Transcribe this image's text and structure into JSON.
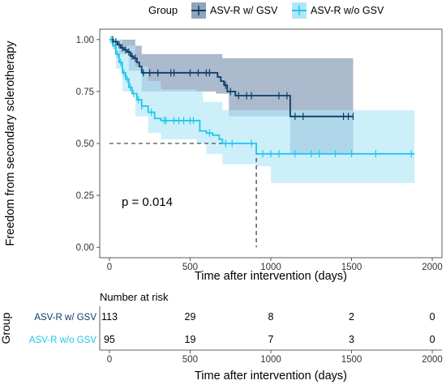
{
  "chart_data": [
    {
      "type": "line",
      "subtype": "kaplan-meier",
      "ylabel": "Freedom from secondary sclerotherapy",
      "xlabel": "Time after intervention (days)",
      "xlim": [
        -60,
        2060
      ],
      "ylim": [
        -0.05,
        1.05
      ],
      "x_ticks": [
        0,
        500,
        1000,
        1500,
        2000
      ],
      "x_tick_labels": [
        "0",
        "500",
        "1000",
        "1500",
        "2000"
      ],
      "y_ticks": [
        0,
        0.25,
        0.5,
        0.75,
        1
      ],
      "y_tick_labels": [
        "0.00",
        "0.25",
        "0.50",
        "0.75",
        "1.00"
      ],
      "grid": false,
      "legend": {
        "title": "Group",
        "placement": "top",
        "items": [
          "ASV-R w/ GSV",
          "ASV-R w/o GSV"
        ]
      },
      "annotation": "p = 0.014",
      "median_line": {
        "y": 0.5,
        "x": 910
      },
      "series": [
        {
          "name": "ASV-R w/ GSV",
          "color": "#0d3b66",
          "ci_color": "#8fa3bc",
          "points": [
            [
              0,
              1
            ],
            [
              25,
              0.99
            ],
            [
              50,
              0.975
            ],
            [
              70,
              0.96
            ],
            [
              90,
              0.95
            ],
            [
              110,
              0.94
            ],
            [
              130,
              0.92
            ],
            [
              150,
              0.91
            ],
            [
              170,
              0.89
            ],
            [
              185,
              0.87
            ],
            [
              200,
              0.84
            ],
            [
              650,
              0.84
            ],
            [
              670,
              0.82
            ],
            [
              690,
              0.8
            ],
            [
              710,
              0.78
            ],
            [
              730,
              0.75
            ],
            [
              780,
              0.73
            ],
            [
              1120,
              0.73
            ],
            [
              1120,
              0.63
            ],
            [
              1510,
              0.63
            ]
          ],
          "ci_upper": [
            [
              0,
              1
            ],
            [
              120,
              1
            ],
            [
              160,
              0.97
            ],
            [
              200,
              0.93
            ],
            [
              660,
              0.93
            ],
            [
              700,
              0.91
            ],
            [
              1510,
              0.9
            ]
          ],
          "ci_lower": [
            [
              0,
              1
            ],
            [
              60,
              0.93
            ],
            [
              120,
              0.85
            ],
            [
              200,
              0.75
            ],
            [
              660,
              0.74
            ],
            [
              740,
              0.63
            ],
            [
              1120,
              0.6
            ],
            [
              1120,
              0.45
            ],
            [
              1510,
              0.45
            ]
          ],
          "censor_x": [
            20,
            40,
            60,
            80,
            100,
            120,
            140,
            160,
            210,
            250,
            300,
            380,
            400,
            500,
            550,
            600,
            620,
            720,
            750,
            800,
            850,
            880,
            1050,
            1100,
            1150,
            1200,
            1450,
            1480,
            1510
          ]
        },
        {
          "name": "ASV-R w/o GSV",
          "color": "#20c5ee",
          "ci_color": "#b0e6f7",
          "points": [
            [
              0,
              1
            ],
            [
              20,
              0.97
            ],
            [
              40,
              0.93
            ],
            [
              60,
              0.89
            ],
            [
              80,
              0.84
            ],
            [
              100,
              0.81
            ],
            [
              120,
              0.77
            ],
            [
              140,
              0.74
            ],
            [
              170,
              0.71
            ],
            [
              200,
              0.68
            ],
            [
              240,
              0.65
            ],
            [
              280,
              0.62
            ],
            [
              320,
              0.61
            ],
            [
              550,
              0.61
            ],
            [
              560,
              0.56
            ],
            [
              600,
              0.55
            ],
            [
              640,
              0.54
            ],
            [
              680,
              0.52
            ],
            [
              700,
              0.5
            ],
            [
              910,
              0.5
            ],
            [
              910,
              0.45
            ],
            [
              1890,
              0.45
            ]
          ],
          "ci_upper": [
            [
              0,
              1
            ],
            [
              80,
              0.97
            ],
            [
              160,
              0.87
            ],
            [
              240,
              0.8
            ],
            [
              320,
              0.76
            ],
            [
              540,
              0.75
            ],
            [
              580,
              0.7
            ],
            [
              700,
              0.66
            ],
            [
              910,
              0.66
            ],
            [
              1100,
              0.66
            ],
            [
              1890,
              0.66
            ]
          ],
          "ci_lower": [
            [
              0,
              1
            ],
            [
              40,
              0.86
            ],
            [
              80,
              0.75
            ],
            [
              160,
              0.63
            ],
            [
              240,
              0.55
            ],
            [
              320,
              0.52
            ],
            [
              540,
              0.5
            ],
            [
              600,
              0.45
            ],
            [
              700,
              0.4
            ],
            [
              910,
              0.39
            ],
            [
              1000,
              0.31
            ],
            [
              1890,
              0.31
            ]
          ],
          "censor_x": [
            10,
            30,
            50,
            70,
            90,
            110,
            130,
            150,
            180,
            200,
            260,
            340,
            350,
            400,
            430,
            460,
            500,
            520,
            620,
            720,
            760,
            880,
            950,
            1000,
            1050,
            1150,
            1250,
            1300,
            1400,
            1500,
            1650,
            1870
          ]
        }
      ]
    },
    {
      "type": "table",
      "title": "Number at risk",
      "ylabel": "Group",
      "xlabel": "Time after intervention (days)",
      "xlim": [
        -60,
        2060
      ],
      "x_ticks": [
        0,
        500,
        1000,
        1500,
        2000
      ],
      "x_tick_labels": [
        "0",
        "500",
        "1000",
        "1500",
        "2000"
      ],
      "rows": [
        {
          "label": "ASV-R w/ GSV",
          "color": "#0d3b66",
          "values": [
            "113",
            "29",
            "8",
            "2",
            "0"
          ]
        },
        {
          "label": "ASV-R w/o GSV",
          "color": "#20c5ee",
          "values": [
            "95",
            "19",
            "7",
            "3",
            "0"
          ]
        }
      ]
    }
  ]
}
